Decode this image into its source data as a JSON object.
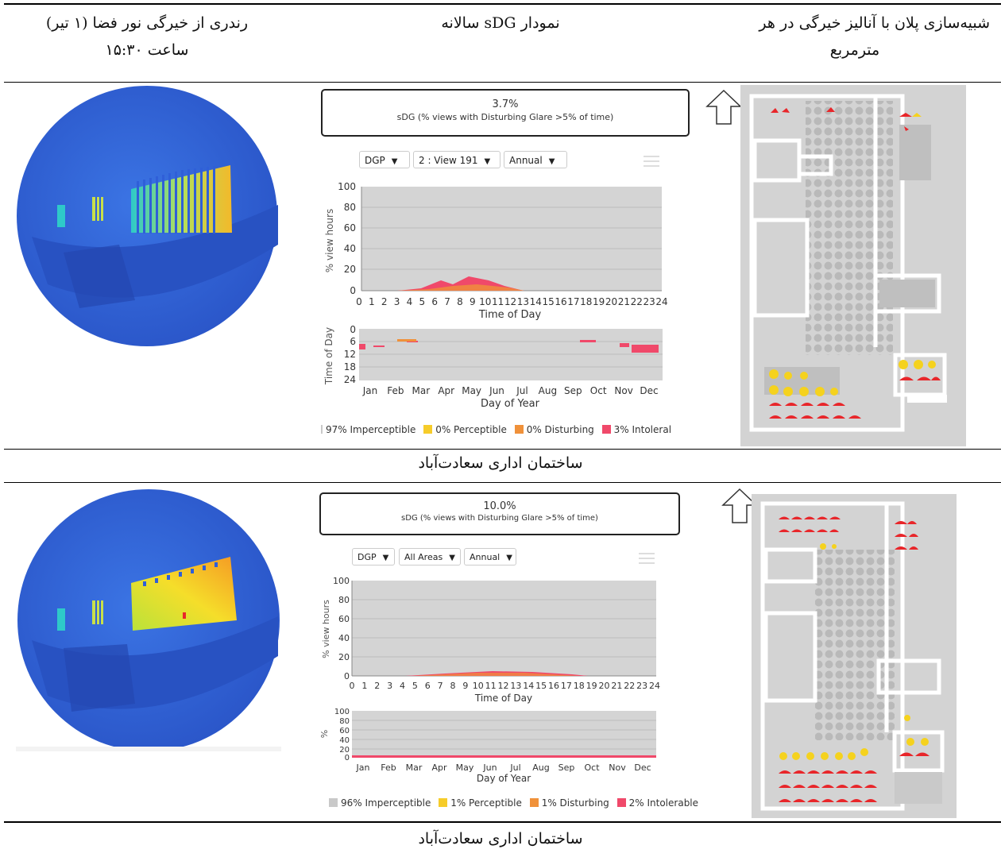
{
  "table": {
    "headers": {
      "right_line1": "شبیه‌سازی پلان با آنالیز خیرگی در هر",
      "right_line2": "مترمربع",
      "middle": "نمودار sDG سالانه",
      "left_line1": "رندری از خیرگی نور فضا (۱ تیر)",
      "left_line2": "ساعت ۱۵:۳۰"
    },
    "rows": [
      {
        "caption": "ساختمان اداری سعادت‌آباد",
        "sdg_value": "3.7%",
        "sdg_label": "sDG (% views with Disturbing Glare >5% of time)",
        "dropdowns": [
          "DGP",
          "2 : View 191",
          "Annual"
        ],
        "daily_chart": {
          "ylabel": "% view hours",
          "xlabel": "Time of Day",
          "yticks": [
            "100",
            "80",
            "60",
            "40",
            "20",
            "0"
          ],
          "xticks": [
            "0",
            "1",
            "2",
            "3",
            "4",
            "5",
            "6",
            "7",
            "8",
            "9",
            "10",
            "11",
            "12",
            "13",
            "14",
            "15",
            "16",
            "17",
            "18",
            "19",
            "20",
            "21",
            "22",
            "23",
            "24"
          ]
        },
        "annual_chart": {
          "ylabel": "Time of Day",
          "xlabel": "Day of Year",
          "yticks": [
            "0",
            "6",
            "12",
            "18",
            "24"
          ],
          "xticks": [
            "Jan",
            "Feb",
            "Mar",
            "Apr",
            "May",
            "Jun",
            "Jul",
            "Aug",
            "Sep",
            "Oct",
            "Nov",
            "Dec"
          ]
        },
        "legend": [
          {
            "label": "97% Imperceptible",
            "color": "#c9c9c9"
          },
          {
            "label": "0% Perceptible",
            "color": "#f6cc2a"
          },
          {
            "label": "0% Disturbing",
            "color": "#f0913a"
          },
          {
            "label": "3% Intoleral",
            "color": "#f0496a"
          }
        ]
      },
      {
        "caption": "ساختمان اداری سعادت‌آباد",
        "sdg_value": "10.0%",
        "sdg_label": "sDG (% views with Disturbing Glare >5% of time)",
        "dropdowns": [
          "DGP",
          "All Areas",
          "Annual"
        ],
        "daily_chart": {
          "ylabel": "% view hours",
          "xlabel": "Time of Day",
          "yticks": [
            "100",
            "80",
            "60",
            "40",
            "20",
            "0"
          ],
          "xticks": [
            "0",
            "1",
            "2",
            "3",
            "4",
            "5",
            "6",
            "7",
            "8",
            "9",
            "10",
            "11",
            "12",
            "13",
            "14",
            "15",
            "16",
            "17",
            "18",
            "19",
            "20",
            "21",
            "22",
            "23",
            "24"
          ]
        },
        "annual_chart": {
          "ylabel": "%",
          "xlabel": "Day of Year",
          "yticks": [
            "100",
            "80",
            "60",
            "40",
            "20",
            "0"
          ],
          "xticks": [
            "Jan",
            "Feb",
            "Mar",
            "Apr",
            "May",
            "Jun",
            "Jul",
            "Aug",
            "Sep",
            "Oct",
            "Nov",
            "Dec"
          ]
        },
        "legend": [
          {
            "label": "96% Imperceptible",
            "color": "#c9c9c9"
          },
          {
            "label": "1% Perceptible",
            "color": "#f6cc2a"
          },
          {
            "label": "1% Disturbing",
            "color": "#f0913a"
          },
          {
            "label": "2% Intolerable",
            "color": "#f0496a"
          }
        ]
      }
    ]
  },
  "icons": {
    "north_arrow": "up-arrow-icon",
    "chart_menu": "hamburger-menu-icon"
  },
  "colors": {
    "render_blue": "#2f5fd8",
    "glare_yellow": "#f5d21e",
    "glare_red": "#e8262a",
    "plan_gray": "#cfcfcf"
  }
}
